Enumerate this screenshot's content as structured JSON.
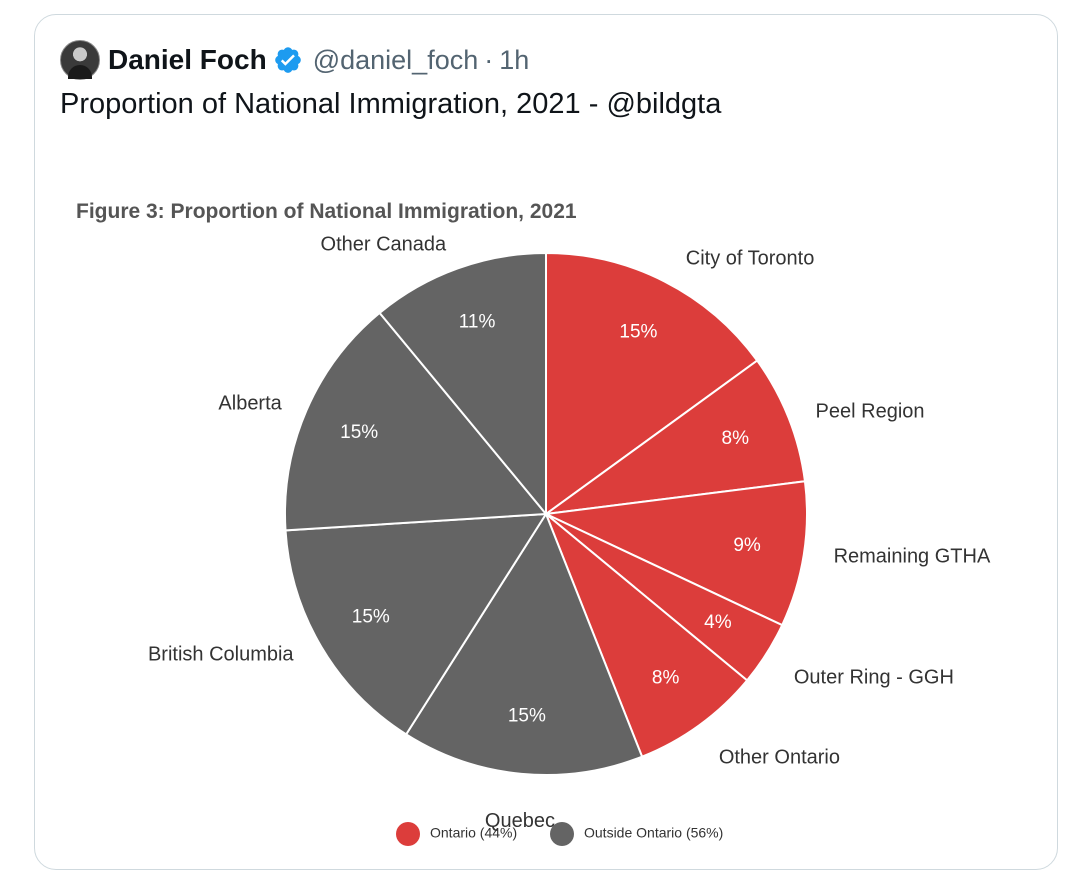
{
  "tweet": {
    "author_name": "Daniel Foch",
    "handle": "@daniel_foch",
    "separator": "·",
    "time": "1h",
    "text": "Proportion of National Immigration, 2021 - @bildgta"
  },
  "colors": {
    "ontario": "#dc3d3b",
    "outside": "#646464",
    "verified": "#1d9bf0"
  },
  "chart_data": {
    "type": "pie",
    "title": "Figure 3: Proportion of National Immigration, 2021",
    "slices": [
      {
        "label": "City of Toronto",
        "value": 15,
        "value_label": "15%",
        "group": "ontario"
      },
      {
        "label": "Peel Region",
        "value": 8,
        "value_label": "8%",
        "group": "ontario"
      },
      {
        "label": "Remaining GTHA",
        "value": 9,
        "value_label": "9%",
        "group": "ontario"
      },
      {
        "label": "Outer Ring - GGH",
        "value": 4,
        "value_label": "4%",
        "group": "ontario"
      },
      {
        "label": "Other Ontario",
        "value": 8,
        "value_label": "8%",
        "group": "ontario"
      },
      {
        "label": "Quebec",
        "value": 15,
        "value_label": "15%",
        "group": "outside"
      },
      {
        "label": "British Columbia",
        "value": 15,
        "value_label": "15%",
        "group": "outside"
      },
      {
        "label": "Alberta",
        "value": 15,
        "value_label": "15%",
        "group": "outside"
      },
      {
        "label": "Other Canada",
        "value": 11,
        "value_label": "11%",
        "group": "outside"
      }
    ],
    "legend": [
      {
        "label": "Ontario (44%)",
        "group": "ontario"
      },
      {
        "label": "Outside Ontario (56%)",
        "group": "outside"
      }
    ],
    "legend_position": "bottom"
  }
}
